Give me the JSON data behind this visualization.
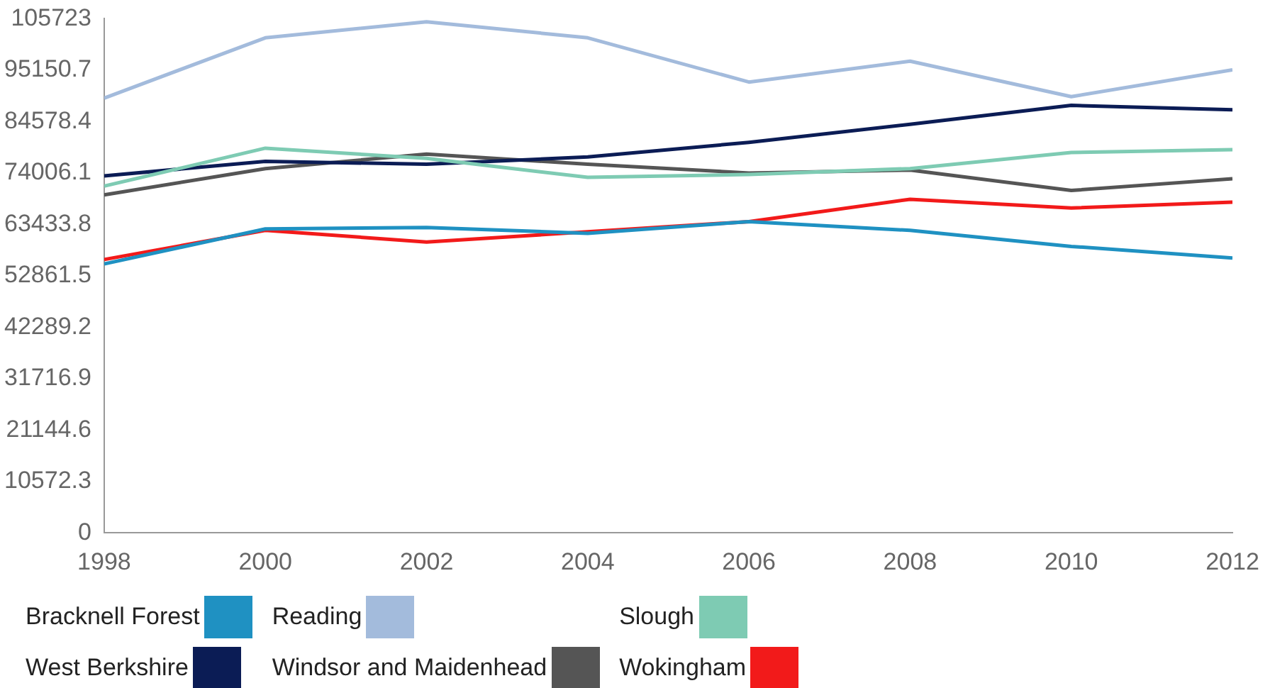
{
  "chart_data": {
    "type": "line",
    "x": [
      1998,
      2000,
      2002,
      2004,
      2006,
      2008,
      2010,
      2012
    ],
    "xlim": [
      1998,
      2012
    ],
    "xticks": [
      1998,
      2000,
      2002,
      2004,
      2006,
      2008,
      2010,
      2012
    ],
    "ylim": [
      0,
      105723
    ],
    "yticks": [
      0,
      10572.3,
      21144.6,
      31716.9,
      42289.2,
      52861.5,
      63433.8,
      74006.1,
      84578.4,
      95150.7,
      105723
    ],
    "grid": false,
    "legend": "bottom",
    "marker": "none",
    "line_style": "solid",
    "series": [
      {
        "name": "Bracknell Forest",
        "color": "#1f91c2",
        "values": [
          55300,
          62500,
          62800,
          61600,
          64000,
          62200,
          58900,
          56500
        ]
      },
      {
        "name": "Reading",
        "color": "#a3bbdc",
        "values": [
          89400,
          101800,
          105100,
          101800,
          92700,
          97000,
          89700,
          95200
        ]
      },
      {
        "name": "Slough",
        "color": "#7ecbb3",
        "values": [
          71300,
          79100,
          77000,
          73100,
          73700,
          74900,
          78200,
          78800
        ]
      },
      {
        "name": "West Berkshire",
        "color": "#0b1c55",
        "values": [
          73400,
          76400,
          75800,
          77300,
          80300,
          84000,
          87900,
          87000
        ]
      },
      {
        "name": "Windsor and Maidenhead",
        "color": "#555555",
        "values": [
          69500,
          74900,
          77900,
          75800,
          74000,
          74600,
          70400,
          72800
        ]
      },
      {
        "name": "Wokingham",
        "color": "#f21a1a",
        "values": [
          56200,
          62200,
          59800,
          61900,
          64000,
          68600,
          66800,
          68000
        ]
      }
    ]
  }
}
